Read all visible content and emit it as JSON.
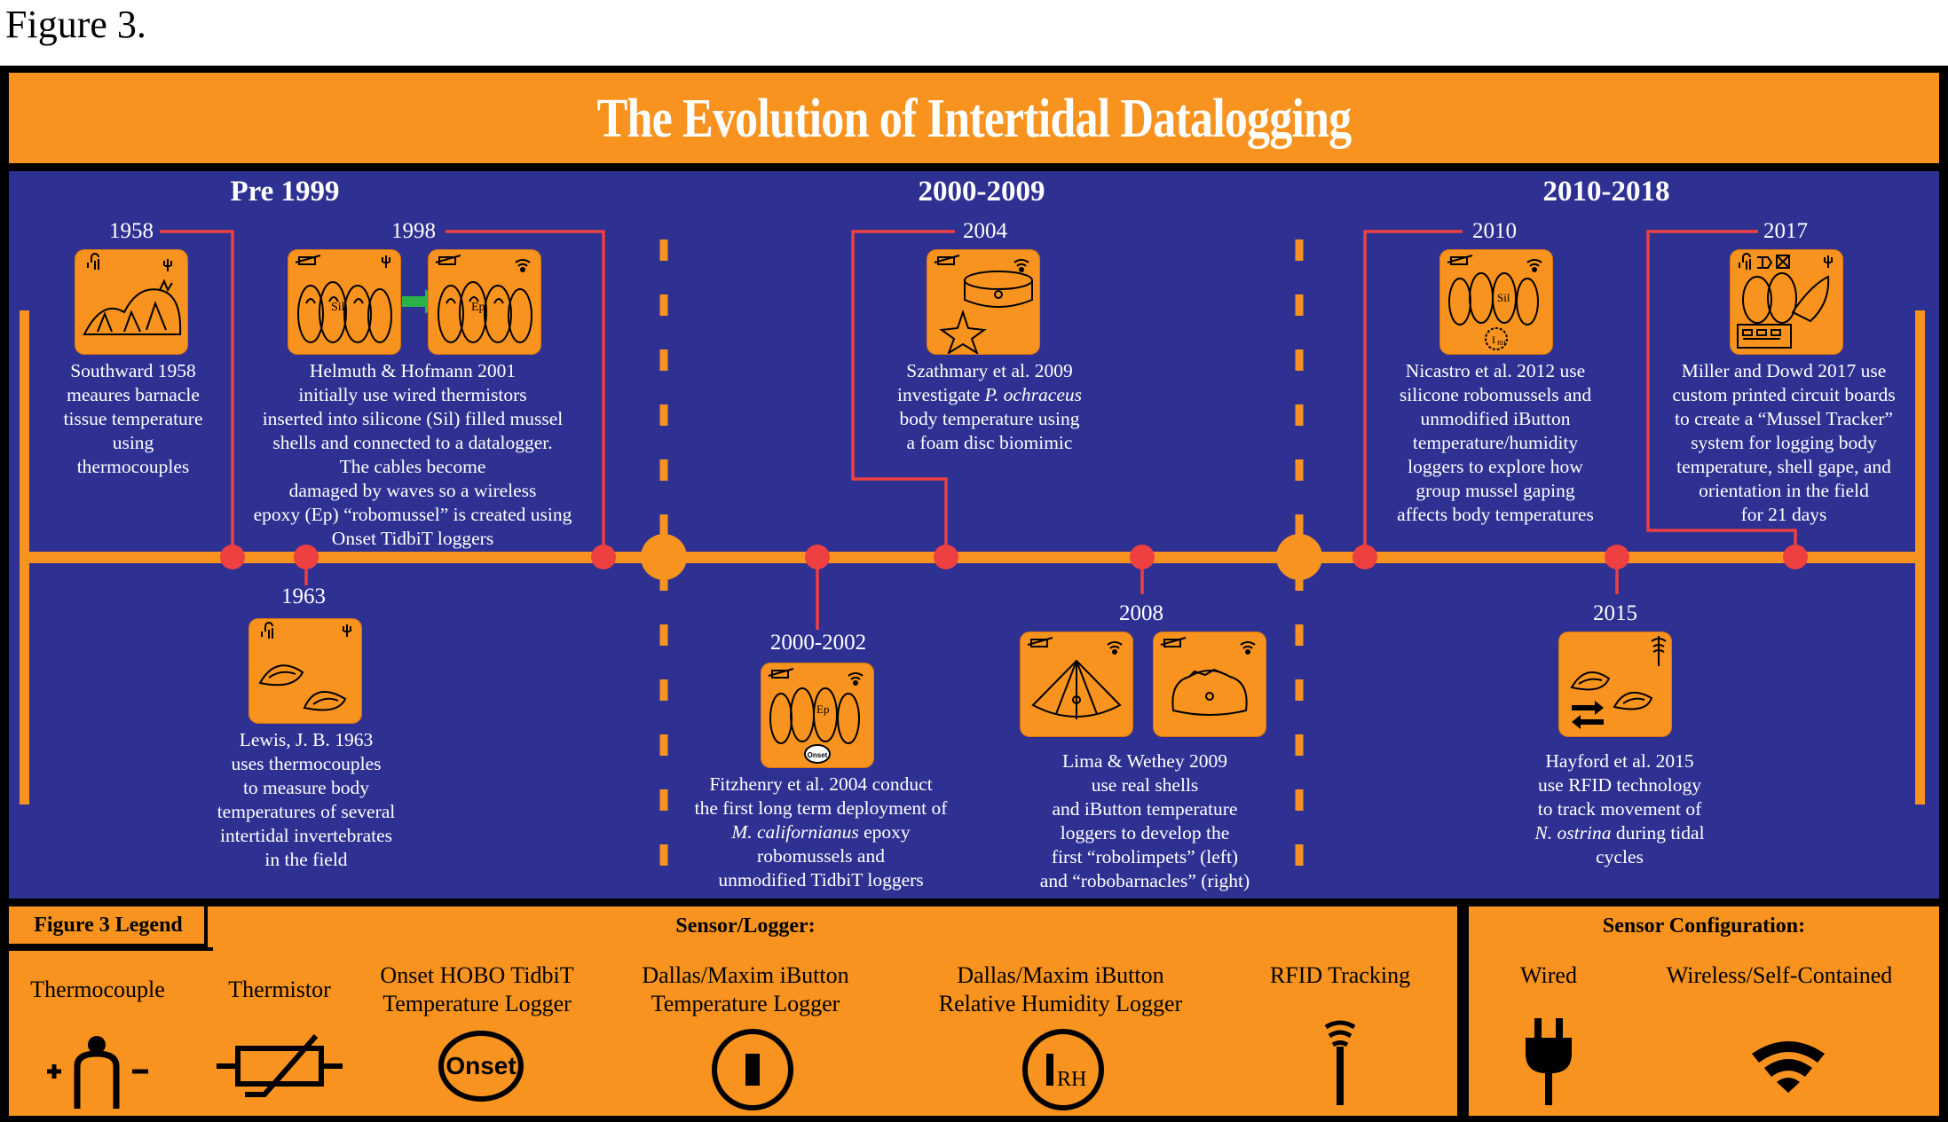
{
  "figure_label": "Figure 3.",
  "title": "The Evolution of Intertidal Datalogging",
  "eras": [
    "Pre 1999",
    "2000-2009",
    "2010-2018"
  ],
  "events": [
    {
      "year": "1958",
      "lines": [
        "Southward 1958",
        "meaures barnacle",
        "tissue temperature",
        "using",
        "thermocouples"
      ]
    },
    {
      "year": "1998",
      "lines": [
        "Helmuth & Hofmann 2001",
        "initially use wired thermistors",
        "inserted into silicone (Sil) filled mussel",
        "shells and connected to a datalogger.",
        "The cables become",
        "damaged by waves so a wireless",
        "epoxy (Ep) “robomussel” is created using",
        "Onset TidbiT loggers"
      ]
    },
    {
      "year": "1963",
      "lines": [
        "Lewis, J. B. 1963",
        "uses thermocouples",
        "to measure body",
        "temperatures of several",
        "intertidal invertebrates",
        "in the field"
      ]
    },
    {
      "year": "2004",
      "lines": [
        "Szathmary et al. 2009",
        "investigate <i>P. ochraceus</i>",
        "body temperature using",
        "a foam disc biomimic"
      ]
    },
    {
      "year": "2000-2002",
      "lines": [
        "Fitzhenry et al. 2004 conduct",
        "the first long term deployment of",
        "<i>M. californianus</i> epoxy",
        "robomussels and",
        "unmodified TidbiT loggers"
      ]
    },
    {
      "year": "2008",
      "lines": [
        "Lima & Wethey 2009",
        "use real shells",
        "and iButton temperature",
        "loggers to develop the",
        "first “robolimpets” (left)",
        "and “robobarnacles” (right)"
      ]
    },
    {
      "year": "2010",
      "lines": [
        "Nicastro et al. 2012 use",
        "silicone robomussels and",
        "unmodified iButton",
        "temperature/humidity",
        "loggers to explore how",
        "group mussel gaping",
        "affects body temperatures"
      ]
    },
    {
      "year": "2017",
      "lines": [
        "Miller and Dowd 2017 use",
        "custom printed circuit boards",
        "to create a “Mussel Tracker”",
        "system for logging body",
        "temperature, shell gape, and",
        "orientation in the field",
        "for 21 days"
      ]
    },
    {
      "year": "2015",
      "lines": [
        "Hayford et al. 2015",
        "use RFID technology",
        "to track movement of",
        "<i>N. ostrina</i> during tidal",
        "cycles"
      ]
    }
  ],
  "card_text": {
    "sil": "Sil",
    "ep": "Ep",
    "onset": "Onset",
    "ibutton_rh": "I",
    "rh_sub": "RH"
  },
  "legend": {
    "title": "Figure 3 Legend",
    "sensor_heading": "Sensor/Logger:",
    "config_heading": "Sensor Configuration:",
    "items": [
      {
        "label": "Thermocouple",
        "icon": "thermocouple-icon"
      },
      {
        "label": "Thermistor",
        "icon": "thermistor-icon"
      },
      {
        "label": "Onset HOBO TidbiT\nTemperature Logger",
        "icon": "onset-logo-icon"
      },
      {
        "label": "Dallas/Maxim iButton\nTemperature Logger",
        "icon": "ibutton-icon"
      },
      {
        "label": "Dallas/Maxim iButton\nRelative Humidity Logger",
        "icon": "ibutton-rh-icon"
      },
      {
        "label": "RFID Tracking",
        "icon": "rfid-icon"
      },
      {
        "label": "Wired",
        "icon": "plug-icon"
      },
      {
        "label": "Wireless/Self-Contained",
        "icon": "wifi-icon"
      }
    ],
    "onset_logo_text": "Onset",
    "rh_text": "RH"
  },
  "colors": {
    "orange": "#f7931e",
    "navy": "#2e3192",
    "red_connector": "#ee4040",
    "arrow_green": "#2bb34a"
  }
}
